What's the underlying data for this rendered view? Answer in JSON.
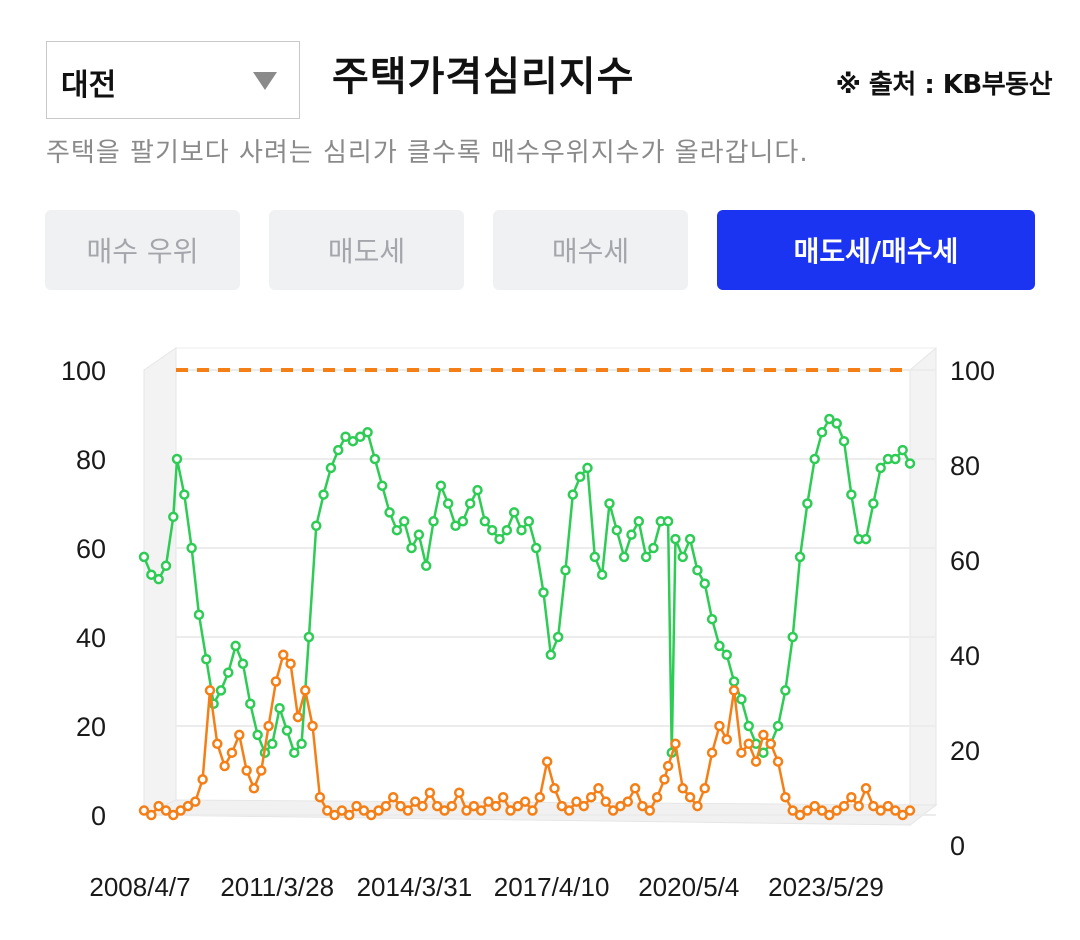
{
  "region": {
    "selected": "대전"
  },
  "header": {
    "title": "주택가격심리지수",
    "source": "※ 출처 : KB부동산",
    "subtitle": "주택을 팔기보다 사려는 심리가 클수록 매수우위지수가 올라갑니다."
  },
  "tabs": [
    {
      "label": "매수 우위",
      "active": false
    },
    {
      "label": "매도세",
      "active": false
    },
    {
      "label": "매수세",
      "active": false
    },
    {
      "label": "매도세/매수세",
      "active": true
    }
  ],
  "colors": {
    "green": "#2ecc55",
    "orange": "#f57f17",
    "accent": "#1b34f2"
  },
  "chart_data": {
    "type": "line",
    "title": "",
    "x_tick_labels": [
      "2008/4/7",
      "2011/3/28",
      "2014/3/31",
      "2017/4/10",
      "2020/5/4",
      "2023/5/29"
    ],
    "x_range": [
      "2008-01",
      "2025-06"
    ],
    "left_axis": {
      "ticks": [
        "100",
        "80",
        "60",
        "40",
        "20",
        "0"
      ],
      "range": [
        0,
        100
      ]
    },
    "right_axis": {
      "ticks": [
        "100",
        "80",
        "60",
        "40",
        "20",
        "0"
      ],
      "range": [
        0,
        100
      ]
    },
    "reference_line": {
      "value": 100,
      "style": "dashed",
      "color": "#f57f17"
    },
    "series": [
      {
        "color": "#2ecc55",
        "points": [
          [
            "2008-01",
            58
          ],
          [
            "2008-03",
            54
          ],
          [
            "2008-05",
            53
          ],
          [
            "2008-07",
            56
          ],
          [
            "2008-09",
            67
          ],
          [
            "2008-10",
            80
          ],
          [
            "2008-12",
            72
          ],
          [
            "2009-02",
            60
          ],
          [
            "2009-04",
            45
          ],
          [
            "2009-06",
            35
          ],
          [
            "2009-08",
            25
          ],
          [
            "2009-10",
            28
          ],
          [
            "2009-12",
            32
          ],
          [
            "2010-02",
            38
          ],
          [
            "2010-04",
            34
          ],
          [
            "2010-06",
            25
          ],
          [
            "2010-08",
            18
          ],
          [
            "2010-10",
            14
          ],
          [
            "2010-12",
            16
          ],
          [
            "2011-02",
            24
          ],
          [
            "2011-04",
            19
          ],
          [
            "2011-06",
            14
          ],
          [
            "2011-08",
            16
          ],
          [
            "2011-10",
            40
          ],
          [
            "2011-12",
            65
          ],
          [
            "2012-02",
            72
          ],
          [
            "2012-04",
            78
          ],
          [
            "2012-06",
            82
          ],
          [
            "2012-08",
            85
          ],
          [
            "2012-10",
            84
          ],
          [
            "2012-12",
            85
          ],
          [
            "2013-02",
            86
          ],
          [
            "2013-04",
            80
          ],
          [
            "2013-06",
            74
          ],
          [
            "2013-08",
            68
          ],
          [
            "2013-10",
            64
          ],
          [
            "2013-12",
            66
          ],
          [
            "2014-02",
            60
          ],
          [
            "2014-04",
            63
          ],
          [
            "2014-06",
            56
          ],
          [
            "2014-08",
            66
          ],
          [
            "2014-10",
            74
          ],
          [
            "2014-12",
            70
          ],
          [
            "2015-02",
            65
          ],
          [
            "2015-04",
            66
          ],
          [
            "2015-06",
            70
          ],
          [
            "2015-08",
            73
          ],
          [
            "2015-10",
            66
          ],
          [
            "2015-12",
            64
          ],
          [
            "2016-02",
            62
          ],
          [
            "2016-04",
            64
          ],
          [
            "2016-06",
            68
          ],
          [
            "2016-08",
            64
          ],
          [
            "2016-10",
            66
          ],
          [
            "2016-12",
            60
          ],
          [
            "2017-02",
            50
          ],
          [
            "2017-04",
            36
          ],
          [
            "2017-06",
            40
          ],
          [
            "2017-08",
            55
          ],
          [
            "2017-10",
            72
          ],
          [
            "2017-12",
            76
          ],
          [
            "2018-02",
            78
          ],
          [
            "2018-04",
            58
          ],
          [
            "2018-06",
            54
          ],
          [
            "2018-08",
            70
          ],
          [
            "2018-10",
            64
          ],
          [
            "2018-12",
            58
          ],
          [
            "2019-02",
            63
          ],
          [
            "2019-04",
            66
          ],
          [
            "2019-06",
            58
          ],
          [
            "2019-08",
            60
          ],
          [
            "2019-10",
            66
          ],
          [
            "2019-12",
            66
          ],
          [
            "2020-01",
            14
          ],
          [
            "2020-02",
            62
          ],
          [
            "2020-04",
            58
          ],
          [
            "2020-06",
            62
          ],
          [
            "2020-08",
            55
          ],
          [
            "2020-10",
            52
          ],
          [
            "2020-12",
            44
          ],
          [
            "2021-02",
            38
          ],
          [
            "2021-04",
            36
          ],
          [
            "2021-06",
            30
          ],
          [
            "2021-08",
            26
          ],
          [
            "2021-10",
            20
          ],
          [
            "2021-12",
            16
          ],
          [
            "2022-02",
            14
          ],
          [
            "2022-04",
            16
          ],
          [
            "2022-06",
            20
          ],
          [
            "2022-08",
            28
          ],
          [
            "2022-10",
            40
          ],
          [
            "2022-12",
            58
          ],
          [
            "2023-02",
            70
          ],
          [
            "2023-04",
            80
          ],
          [
            "2023-06",
            86
          ],
          [
            "2023-08",
            89
          ],
          [
            "2023-10",
            88
          ],
          [
            "2023-12",
            84
          ],
          [
            "2024-02",
            72
          ],
          [
            "2024-04",
            62
          ],
          [
            "2024-06",
            62
          ],
          [
            "2024-08",
            70
          ],
          [
            "2024-10",
            78
          ],
          [
            "2024-12",
            80
          ],
          [
            "2025-02",
            80
          ],
          [
            "2025-04",
            82
          ],
          [
            "2025-06",
            79
          ]
        ]
      },
      {
        "color": "#f57f17",
        "points": [
          [
            "2008-01",
            1
          ],
          [
            "2008-03",
            0
          ],
          [
            "2008-05",
            2
          ],
          [
            "2008-07",
            1
          ],
          [
            "2008-09",
            0
          ],
          [
            "2008-11",
            1
          ],
          [
            "2009-01",
            2
          ],
          [
            "2009-03",
            3
          ],
          [
            "2009-05",
            8
          ],
          [
            "2009-07",
            28
          ],
          [
            "2009-09",
            16
          ],
          [
            "2009-11",
            11
          ],
          [
            "2010-01",
            14
          ],
          [
            "2010-03",
            18
          ],
          [
            "2010-05",
            10
          ],
          [
            "2010-07",
            6
          ],
          [
            "2010-09",
            10
          ],
          [
            "2010-11",
            20
          ],
          [
            "2011-01",
            30
          ],
          [
            "2011-03",
            36
          ],
          [
            "2011-05",
            34
          ],
          [
            "2011-07",
            22
          ],
          [
            "2011-09",
            28
          ],
          [
            "2011-11",
            20
          ],
          [
            "2012-01",
            4
          ],
          [
            "2012-03",
            1
          ],
          [
            "2012-05",
            0
          ],
          [
            "2012-07",
            1
          ],
          [
            "2012-09",
            0
          ],
          [
            "2012-11",
            2
          ],
          [
            "2013-01",
            1
          ],
          [
            "2013-03",
            0
          ],
          [
            "2013-05",
            1
          ],
          [
            "2013-07",
            2
          ],
          [
            "2013-09",
            4
          ],
          [
            "2013-11",
            2
          ],
          [
            "2014-01",
            1
          ],
          [
            "2014-03",
            3
          ],
          [
            "2014-05",
            2
          ],
          [
            "2014-07",
            5
          ],
          [
            "2014-09",
            2
          ],
          [
            "2014-11",
            1
          ],
          [
            "2015-01",
            2
          ],
          [
            "2015-03",
            5
          ],
          [
            "2015-05",
            1
          ],
          [
            "2015-07",
            2
          ],
          [
            "2015-09",
            1
          ],
          [
            "2015-11",
            3
          ],
          [
            "2016-01",
            2
          ],
          [
            "2016-03",
            4
          ],
          [
            "2016-05",
            1
          ],
          [
            "2016-07",
            2
          ],
          [
            "2016-09",
            3
          ],
          [
            "2016-11",
            1
          ],
          [
            "2017-01",
            4
          ],
          [
            "2017-03",
            12
          ],
          [
            "2017-05",
            6
          ],
          [
            "2017-07",
            2
          ],
          [
            "2017-09",
            1
          ],
          [
            "2017-11",
            3
          ],
          [
            "2018-01",
            2
          ],
          [
            "2018-03",
            4
          ],
          [
            "2018-05",
            6
          ],
          [
            "2018-07",
            3
          ],
          [
            "2018-09",
            1
          ],
          [
            "2018-11",
            2
          ],
          [
            "2019-01",
            3
          ],
          [
            "2019-03",
            6
          ],
          [
            "2019-05",
            2
          ],
          [
            "2019-07",
            1
          ],
          [
            "2019-09",
            4
          ],
          [
            "2019-11",
            8
          ],
          [
            "2019-12",
            11
          ],
          [
            "2020-02",
            16
          ],
          [
            "2020-04",
            6
          ],
          [
            "2020-06",
            4
          ],
          [
            "2020-08",
            2
          ],
          [
            "2020-10",
            6
          ],
          [
            "2020-12",
            14
          ],
          [
            "2021-02",
            20
          ],
          [
            "2021-04",
            17
          ],
          [
            "2021-06",
            28
          ],
          [
            "2021-08",
            14
          ],
          [
            "2021-10",
            16
          ],
          [
            "2021-12",
            12
          ],
          [
            "2022-02",
            18
          ],
          [
            "2022-04",
            16
          ],
          [
            "2022-06",
            12
          ],
          [
            "2022-08",
            4
          ],
          [
            "2022-10",
            1
          ],
          [
            "2022-12",
            0
          ],
          [
            "2023-02",
            1
          ],
          [
            "2023-04",
            2
          ],
          [
            "2023-06",
            1
          ],
          [
            "2023-08",
            0
          ],
          [
            "2023-10",
            1
          ],
          [
            "2023-12",
            2
          ],
          [
            "2024-02",
            4
          ],
          [
            "2024-04",
            2
          ],
          [
            "2024-06",
            6
          ],
          [
            "2024-08",
            2
          ],
          [
            "2024-10",
            1
          ],
          [
            "2024-12",
            2
          ],
          [
            "2025-02",
            1
          ],
          [
            "2025-04",
            0
          ],
          [
            "2025-06",
            1
          ]
        ]
      }
    ]
  }
}
